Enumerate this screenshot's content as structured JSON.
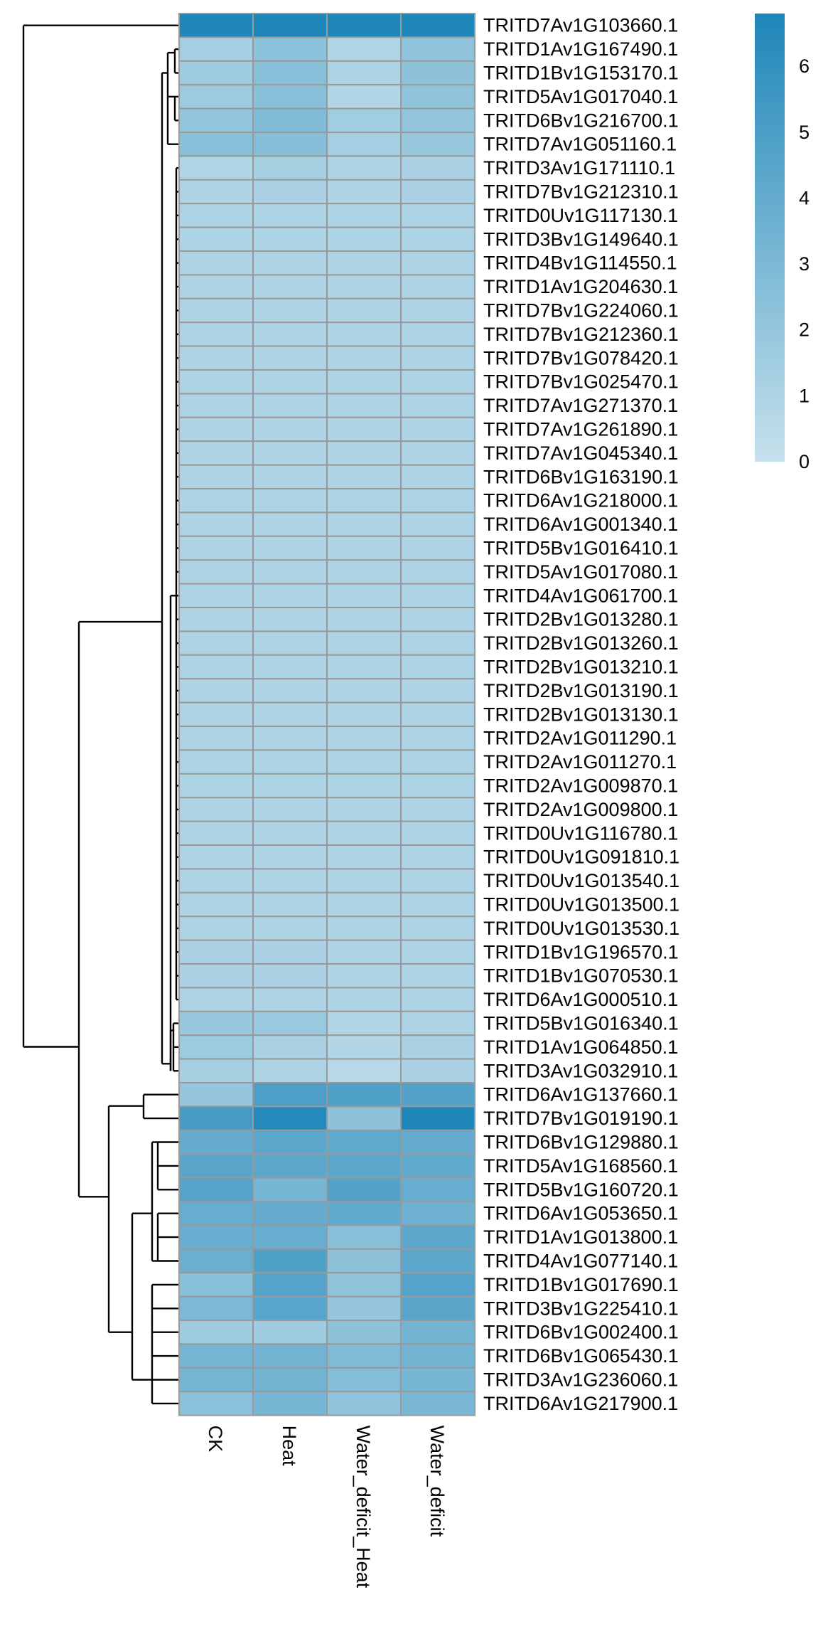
{
  "chart_data": {
    "type": "heatmap",
    "title": "",
    "xlabel": "",
    "ylabel": "",
    "columns": [
      "CK",
      "Heat",
      "Water_deficit_Heat",
      "Water_deficit"
    ],
    "rows": [
      "TRITD7Av1G103660.1",
      "TRITD1Av1G167490.1",
      "TRITD1Bv1G153170.1",
      "TRITD5Av1G017040.1",
      "TRITD6Bv1G216700.1",
      "TRITD7Av1G051160.1",
      "TRITD3Av1G171110.1",
      "TRITD7Bv1G212310.1",
      "TRITD0Uv1G117130.1",
      "TRITD3Bv1G149640.1",
      "TRITD4Bv1G114550.1",
      "TRITD1Av1G204630.1",
      "TRITD7Bv1G224060.1",
      "TRITD7Bv1G212360.1",
      "TRITD7Bv1G078420.1",
      "TRITD7Bv1G025470.1",
      "TRITD7Av1G271370.1",
      "TRITD7Av1G261890.1",
      "TRITD7Av1G045340.1",
      "TRITD6Bv1G163190.1",
      "TRITD6Av1G218000.1",
      "TRITD6Av1G001340.1",
      "TRITD5Bv1G016410.1",
      "TRITD5Av1G017080.1",
      "TRITD4Av1G061700.1",
      "TRITD2Bv1G013280.1",
      "TRITD2Bv1G013260.1",
      "TRITD2Bv1G013210.1",
      "TRITD2Bv1G013190.1",
      "TRITD2Bv1G013130.1",
      "TRITD2Av1G011290.1",
      "TRITD2Av1G011270.1",
      "TRITD2Av1G009870.1",
      "TRITD2Av1G009800.1",
      "TRITD0Uv1G116780.1",
      "TRITD0Uv1G091810.1",
      "TRITD0Uv1G013540.1",
      "TRITD0Uv1G013500.1",
      "TRITD0Uv1G013530.1",
      "TRITD1Bv1G196570.1",
      "TRITD1Bv1G070530.1",
      "TRITD6Av1G000510.1",
      "TRITD5Bv1G016340.1",
      "TRITD1Av1G064850.1",
      "TRITD3Av1G032910.1",
      "TRITD6Av1G137660.1",
      "TRITD7Bv1G019190.1",
      "TRITD6Bv1G129880.1",
      "TRITD5Av1G168560.1",
      "TRITD5Bv1G160720.1",
      "TRITD6Av1G053650.1",
      "TRITD1Av1G013800.1",
      "TRITD4Av1G077140.1",
      "TRITD1Bv1G017690.1",
      "TRITD3Bv1G225410.1",
      "TRITD6Bv1G002400.1",
      "TRITD6Bv1G065430.1",
      "TRITD3Av1G236060.1",
      "TRITD6Av1G217900.1"
    ],
    "values": [
      [
        6.8,
        6.8,
        6.8,
        6.8
      ],
      [
        1.4,
        2.4,
        0.9,
        2.2
      ],
      [
        1.6,
        2.5,
        1.0,
        2.3
      ],
      [
        1.7,
        2.5,
        0.8,
        2.2
      ],
      [
        2.1,
        2.8,
        1.5,
        2.1
      ],
      [
        2.5,
        2.6,
        1.4,
        1.9
      ],
      [
        0.9,
        1.3,
        1.0,
        1.1
      ],
      [
        1.0,
        1.2,
        1.0,
        1.1
      ],
      [
        1.0,
        1.0,
        1.0,
        1.0
      ],
      [
        1.0,
        1.0,
        1.0,
        1.0
      ],
      [
        1.0,
        1.0,
        1.0,
        1.0
      ],
      [
        1.0,
        1.0,
        1.0,
        1.0
      ],
      [
        1.0,
        1.0,
        1.0,
        1.0
      ],
      [
        1.0,
        1.0,
        1.0,
        1.0
      ],
      [
        1.0,
        1.0,
        1.0,
        1.0
      ],
      [
        1.0,
        1.0,
        1.0,
        1.0
      ],
      [
        1.0,
        1.0,
        1.0,
        1.0
      ],
      [
        1.0,
        1.0,
        1.0,
        1.0
      ],
      [
        1.0,
        1.0,
        1.0,
        1.0
      ],
      [
        1.0,
        1.0,
        1.0,
        1.0
      ],
      [
        1.0,
        1.0,
        1.0,
        1.0
      ],
      [
        1.0,
        1.0,
        1.0,
        1.0
      ],
      [
        1.0,
        1.0,
        1.0,
        1.0
      ],
      [
        1.0,
        1.0,
        1.0,
        1.0
      ],
      [
        1.0,
        1.0,
        1.0,
        1.0
      ],
      [
        1.0,
        1.0,
        1.0,
        1.0
      ],
      [
        1.0,
        1.0,
        1.0,
        1.0
      ],
      [
        1.0,
        1.0,
        1.0,
        1.0
      ],
      [
        1.0,
        1.0,
        1.0,
        1.0
      ],
      [
        1.0,
        1.0,
        1.0,
        1.0
      ],
      [
        1.0,
        1.0,
        1.0,
        1.0
      ],
      [
        1.0,
        1.0,
        1.0,
        1.0
      ],
      [
        1.0,
        1.0,
        1.0,
        1.0
      ],
      [
        1.0,
        1.0,
        1.0,
        1.0
      ],
      [
        1.0,
        1.0,
        1.0,
        1.0
      ],
      [
        1.0,
        1.0,
        1.0,
        1.0
      ],
      [
        1.0,
        1.0,
        1.0,
        1.0
      ],
      [
        1.0,
        1.0,
        1.0,
        1.0
      ],
      [
        1.0,
        1.0,
        1.0,
        1.0
      ],
      [
        1.2,
        1.1,
        1.0,
        1.0
      ],
      [
        1.1,
        1.1,
        1.0,
        1.0
      ],
      [
        1.0,
        1.0,
        1.0,
        1.0
      ],
      [
        1.9,
        1.8,
        0.9,
        1.0
      ],
      [
        1.7,
        1.2,
        0.8,
        1.2
      ],
      [
        1.3,
        1.0,
        0.6,
        1.1
      ],
      [
        2.0,
        4.9,
        4.8,
        4.7
      ],
      [
        5.2,
        6.6,
        2.3,
        6.8
      ],
      [
        4.0,
        4.3,
        4.2,
        4.0
      ],
      [
        4.4,
        4.3,
        4.3,
        4.1
      ],
      [
        4.6,
        3.2,
        4.7,
        3.9
      ],
      [
        3.9,
        4.0,
        4.1,
        3.6
      ],
      [
        3.8,
        3.9,
        2.5,
        4.3
      ],
      [
        3.7,
        4.8,
        2.3,
        4.3
      ],
      [
        2.5,
        4.6,
        2.2,
        4.6
      ],
      [
        3.0,
        4.5,
        2.0,
        4.4
      ],
      [
        1.6,
        1.6,
        2.3,
        3.4
      ],
      [
        3.3,
        3.4,
        2.8,
        3.4
      ],
      [
        3.3,
        3.4,
        2.6,
        3.2
      ],
      [
        2.4,
        3.2,
        2.2,
        3.1
      ]
    ],
    "color_scale": {
      "min": 0,
      "max": 6.8,
      "low_color": "#c6e1ec",
      "high_color": "#1f86b9",
      "ticks": [
        0,
        1,
        2,
        3,
        4,
        5,
        6
      ]
    },
    "row_dendrogram": true,
    "cell_border_color": "#999999",
    "legend_position": "top-right"
  }
}
